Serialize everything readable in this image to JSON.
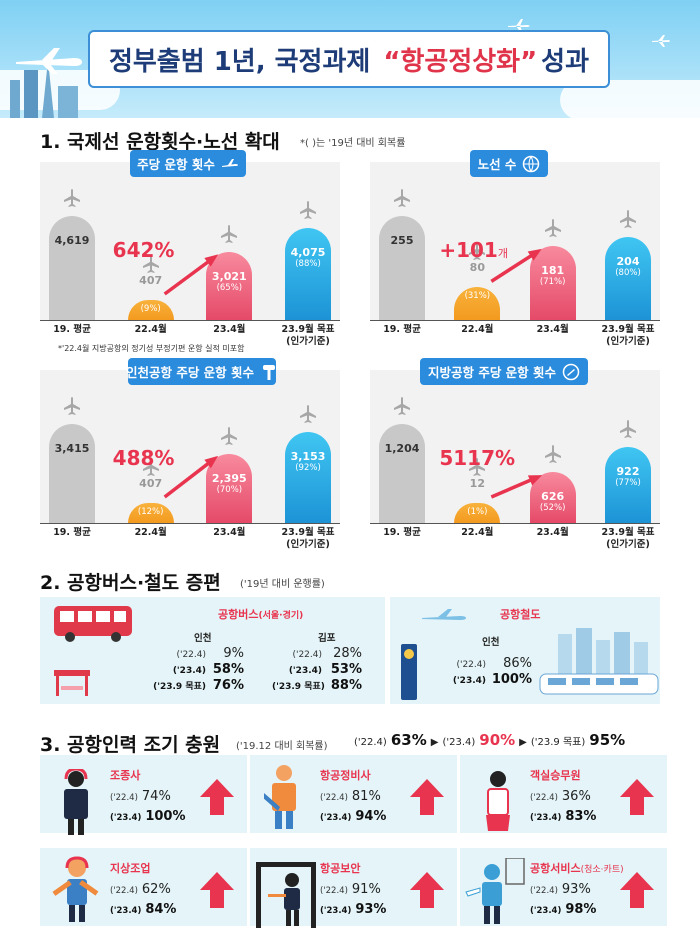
{
  "header": {
    "title_pre": "정부출범 1년, 국정과제",
    "title_highlight": "“항공정상화”",
    "title_post": "성과"
  },
  "section1": {
    "title": "1. 국제선 운항횟수·노선 확대",
    "note": "*( )는 '19년 대비 회복률",
    "footnote": "*'22.4월 지방공항의 정기성 부정기편 운항 실적 미포함",
    "categories": [
      "19. 평균",
      "22.4월",
      "23.4월",
      "23.9월 목표\n(인가기준)"
    ]
  },
  "chart_data": [
    {
      "type": "bar",
      "title": "주당 운항 횟수",
      "categories": [
        "19. 평균",
        "22.4월",
        "23.4월",
        "23.9월 목표 (인가기준)"
      ],
      "values": [
        4619,
        407,
        3021,
        4075
      ],
      "value_labels": [
        "4,619",
        "407",
        "3,021",
        "4,075"
      ],
      "recovery": [
        "",
        "(9%)",
        "(65%)",
        "(88%)"
      ],
      "growth": "642%",
      "ymax": 4619
    },
    {
      "type": "bar",
      "title": "노선 수",
      "categories": [
        "19. 평균",
        "22.4월",
        "23.4월",
        "23.9월 목표 (인가기준)"
      ],
      "values": [
        255,
        80,
        181,
        204
      ],
      "value_labels": [
        "255",
        "80",
        "181",
        "204"
      ],
      "recovery": [
        "",
        "(31%)",
        "(71%)",
        "(80%)"
      ],
      "growth": "+101",
      "growth_unit": "개",
      "ymax": 255
    },
    {
      "type": "bar",
      "title": "인천공항 주당 운항 횟수",
      "categories": [
        "19. 평균",
        "22.4월",
        "23.4월",
        "23.9월 목표 (인가기준)"
      ],
      "values": [
        3415,
        407,
        2395,
        3153
      ],
      "value_labels": [
        "3,415",
        "407",
        "2,395",
        "3,153"
      ],
      "recovery": [
        "",
        "(12%)",
        "(70%)",
        "(92%)"
      ],
      "growth": "488%",
      "ymax": 3415
    },
    {
      "type": "bar",
      "title": "지방공항 주당 운항 횟수",
      "categories": [
        "19. 평균",
        "22.4월",
        "23.4월",
        "23.9월 목표 (인가기준)"
      ],
      "values": [
        1204,
        12,
        626,
        922
      ],
      "value_labels": [
        "1,204",
        "12",
        "626",
        "922"
      ],
      "recovery": [
        "",
        "(1%)",
        "(52%)",
        "(77%)"
      ],
      "growth": "5117%",
      "ymax": 1204
    }
  ],
  "section2": {
    "title": "2. 공항버스·철도 증편",
    "note": "('19년 대비 운행률)",
    "bus": {
      "title": "공항버스",
      "title_sub": "(서울·경기)",
      "incheon": {
        "label": "인천",
        "rows": [
          {
            "lb": "('22.4)",
            "v": "9%"
          },
          {
            "lb": "('23.4)",
            "v": "58%"
          },
          {
            "lb": "('23.9 목표)",
            "v": "76%"
          }
        ]
      },
      "gimpo": {
        "label": "김포",
        "rows": [
          {
            "lb": "('22.4)",
            "v": "28%"
          },
          {
            "lb": "('23.4)",
            "v": "53%"
          },
          {
            "lb": "('23.9 목표)",
            "v": "88%"
          }
        ]
      }
    },
    "rail": {
      "title": "공항철도",
      "label": "인천",
      "rows": [
        {
          "lb": "('22.4)",
          "v": "86%"
        },
        {
          "lb": "('23.4)",
          "v": "100%"
        }
      ]
    }
  },
  "section3": {
    "title": "3. 공항인력 조기 충원",
    "note": "('19.12 대비 회복률)",
    "summary": [
      {
        "lb": "('22.4)",
        "v": "63%"
      },
      {
        "lb": "('23.4)",
        "v": "90%"
      },
      {
        "lb": "('23.9 목표)",
        "v": "95%"
      }
    ],
    "jobs": [
      {
        "title": "조종사",
        "sub": "",
        "r1": "74%",
        "r2": "100%"
      },
      {
        "title": "항공정비사",
        "sub": "",
        "r1": "81%",
        "r2": "94%"
      },
      {
        "title": "객실승무원",
        "sub": "",
        "r1": "36%",
        "r2": "83%"
      },
      {
        "title": "지상조업",
        "sub": "",
        "r1": "62%",
        "r2": "84%"
      },
      {
        "title": "항공보안",
        "sub": "",
        "r1": "91%",
        "r2": "93%"
      },
      {
        "title": "공항서비스",
        "sub": "(청소·카트)",
        "r1": "93%",
        "r2": "98%"
      }
    ],
    "lb1": "('22.4)",
    "lb2": "('23.4)"
  },
  "colors": {
    "accent_red": "#e8344e",
    "tag_blue": "#2b8bdc",
    "bar_gray": "#c8c8c8",
    "bar_orange": "#f39a1f",
    "bar_pink": "#e54a68",
    "bar_blue": "#1d93d6",
    "panel_bg": "#e4f4f8"
  }
}
